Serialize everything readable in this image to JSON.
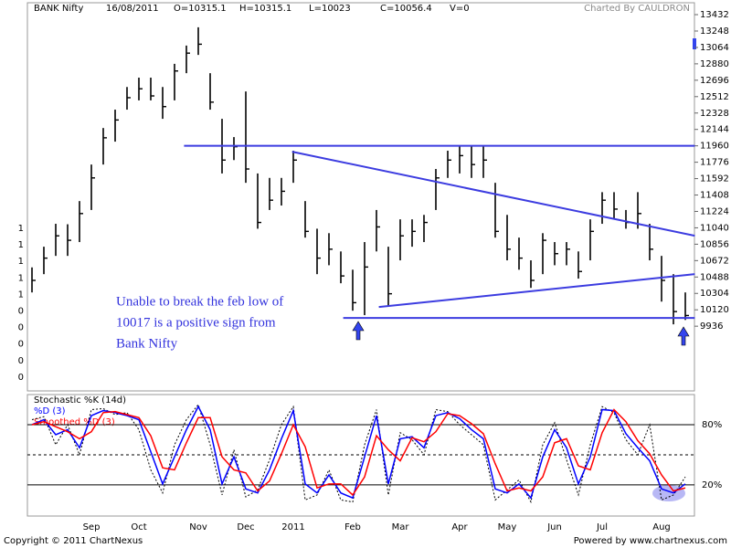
{
  "chart_data": [
    {
      "type": "ohlc",
      "title": "BANK Nifty",
      "date": "16/08/2011",
      "summary": [
        "O=10315.1",
        "H=10315.1",
        "L=10023",
        "C=10056.4",
        "V=0"
      ],
      "credit": "Charted By CAULDRON",
      "categories": [
        null,
        null,
        null,
        null,
        null,
        "Sep",
        null,
        null,
        null,
        "Oct",
        null,
        null,
        null,
        null,
        "Nov",
        null,
        null,
        null,
        "Dec",
        null,
        null,
        null,
        "2011",
        null,
        null,
        null,
        null,
        "Feb",
        null,
        null,
        null,
        "Mar",
        null,
        null,
        null,
        null,
        "Apr",
        null,
        null,
        null,
        "May",
        null,
        null,
        null,
        "Jun",
        null,
        null,
        null,
        "Jul",
        null,
        null,
        null,
        null,
        "Aug",
        null,
        null
      ],
      "high": [
        10596,
        10828,
        11085,
        11080,
        11340,
        11750,
        12160,
        12366,
        12620,
        12725,
        12725,
        12620,
        12880,
        13085,
        13290,
        12775,
        12263,
        12058,
        12570,
        11650,
        11600,
        11600,
        11905,
        11340,
        11030,
        10980,
        10775,
        10570,
        10880,
        11240,
        10828,
        11135,
        11135,
        11185,
        11700,
        11905,
        11955,
        11955,
        11955,
        11545,
        11185,
        10930,
        10675,
        10980,
        10880,
        10880,
        10775,
        11135,
        11440,
        11440,
        11240,
        11440,
        11085,
        10725,
        10520,
        10315
      ],
      "low": [
        10315,
        10520,
        10725,
        10725,
        10880,
        11240,
        11750,
        12007,
        12366,
        12470,
        12470,
        12263,
        12470,
        12775,
        12980,
        12366,
        11650,
        11800,
        11545,
        11030,
        11240,
        11290,
        11545,
        10930,
        10520,
        10620,
        10418,
        10110,
        10060,
        10775,
        10160,
        10675,
        10828,
        10880,
        11240,
        11600,
        11650,
        11600,
        11600,
        10930,
        10675,
        10570,
        10366,
        10520,
        10620,
        10620,
        10470,
        10675,
        11085,
        11135,
        11030,
        11030,
        10675,
        10212,
        9957,
        10006
      ],
      "close": [
        10450,
        10700,
        10950,
        10900,
        11200,
        11600,
        12050,
        12250,
        12500,
        12600,
        12520,
        12400,
        12800,
        13000,
        13100,
        12450,
        11800,
        11950,
        11700,
        11100,
        11350,
        11450,
        11800,
        11000,
        10700,
        10800,
        10500,
        10200,
        10600,
        11050,
        10300,
        10950,
        11000,
        11100,
        11600,
        11800,
        11850,
        11750,
        11800,
        11000,
        10800,
        10700,
        10450,
        10900,
        10750,
        10800,
        10550,
        11000,
        11350,
        11250,
        11100,
        11200,
        10800,
        10450,
        10100,
        10056
      ],
      "color": "#000000",
      "ylim": [
        9210,
        13545
      ],
      "yticks": [
        9936,
        10120,
        10304,
        10488,
        10672,
        10856,
        11040,
        11224,
        11408,
        11592,
        11776,
        11960,
        12144,
        12328,
        12512,
        12696,
        12880,
        13064,
        13248,
        13432
      ],
      "left_axis_labels": [
        1,
        1,
        1,
        1,
        1,
        0,
        0,
        0,
        0,
        0
      ],
      "trend_color": "#3c3ce0",
      "trend_lines": [
        [
          [
            12.8,
            11960
          ],
          [
            55.8,
            11960
          ]
        ],
        [
          [
            21.9,
            11894
          ],
          [
            55.8,
            10951
          ]
        ],
        [
          [
            29.2,
            10151
          ],
          [
            55.8,
            10520
          ]
        ],
        [
          [
            26.2,
            10028
          ],
          [
            55.8,
            10028
          ]
        ]
      ],
      "annotation": [
        "Unable to break the feb low of",
        "10017 is a positive sign from",
        "Bank Nifty"
      ]
    },
    {
      "type": "line",
      "series": [
        {
          "name": "Stochastic %K (14d)",
          "color": "#000000",
          "dashed": true,
          "values": [
            85,
            88,
            60,
            80,
            50,
            95,
            96,
            90,
            92,
            75,
            35,
            12,
            60,
            85,
            100,
            60,
            10,
            55,
            8,
            15,
            45,
            80,
            98,
            5,
            10,
            35,
            5,
            3,
            60,
            95,
            10,
            72,
            65,
            50,
            95,
            93,
            80,
            70,
            60,
            5,
            15,
            25,
            3,
            60,
            82,
            45,
            10,
            60,
            98,
            92,
            65,
            50,
            80,
            5,
            10,
            28
          ]
        },
        {
          "name": "%D (3)",
          "color": "#0000ff",
          "dashed": false,
          "values": [
            80,
            85,
            70,
            75,
            57,
            89,
            94,
            92,
            89,
            85,
            53,
            21,
            48,
            75,
            98,
            75,
            21,
            48,
            16,
            12,
            35,
            66,
            94,
            21,
            12,
            30,
            12,
            7,
            48,
            89,
            21,
            66,
            68,
            57,
            89,
            92,
            86,
            75,
            66,
            16,
            12,
            21,
            7,
            48,
            75,
            57,
            21,
            48,
            95,
            94,
            71,
            57,
            44,
            16,
            12,
            21
          ]
        },
        {
          "name": "Smoothed %D (3)",
          "color": "#ff0000",
          "dashed": false,
          "values": [
            80,
            83,
            78,
            73,
            66,
            73,
            92,
            93,
            90,
            87,
            69,
            37,
            35,
            62,
            87,
            87,
            48,
            35,
            32,
            14,
            24,
            51,
            80,
            58,
            17,
            21,
            21,
            10,
            28,
            69,
            55,
            44,
            67,
            63,
            73,
            91,
            89,
            81,
            71,
            41,
            14,
            17,
            14,
            28,
            62,
            66,
            39,
            35,
            72,
            95,
            83,
            64,
            51,
            30,
            14,
            17
          ]
        }
      ],
      "ylim": [
        -11,
        110
      ],
      "yticks": [
        {
          "value": 20,
          "label": "20%"
        },
        {
          "value": 80,
          "label": "80%"
        }
      ],
      "midline": 50
    }
  ],
  "footer": {
    "left": "Copyright © 2011 ChartNexus",
    "right": "Powered by www.chartnexus.com"
  }
}
